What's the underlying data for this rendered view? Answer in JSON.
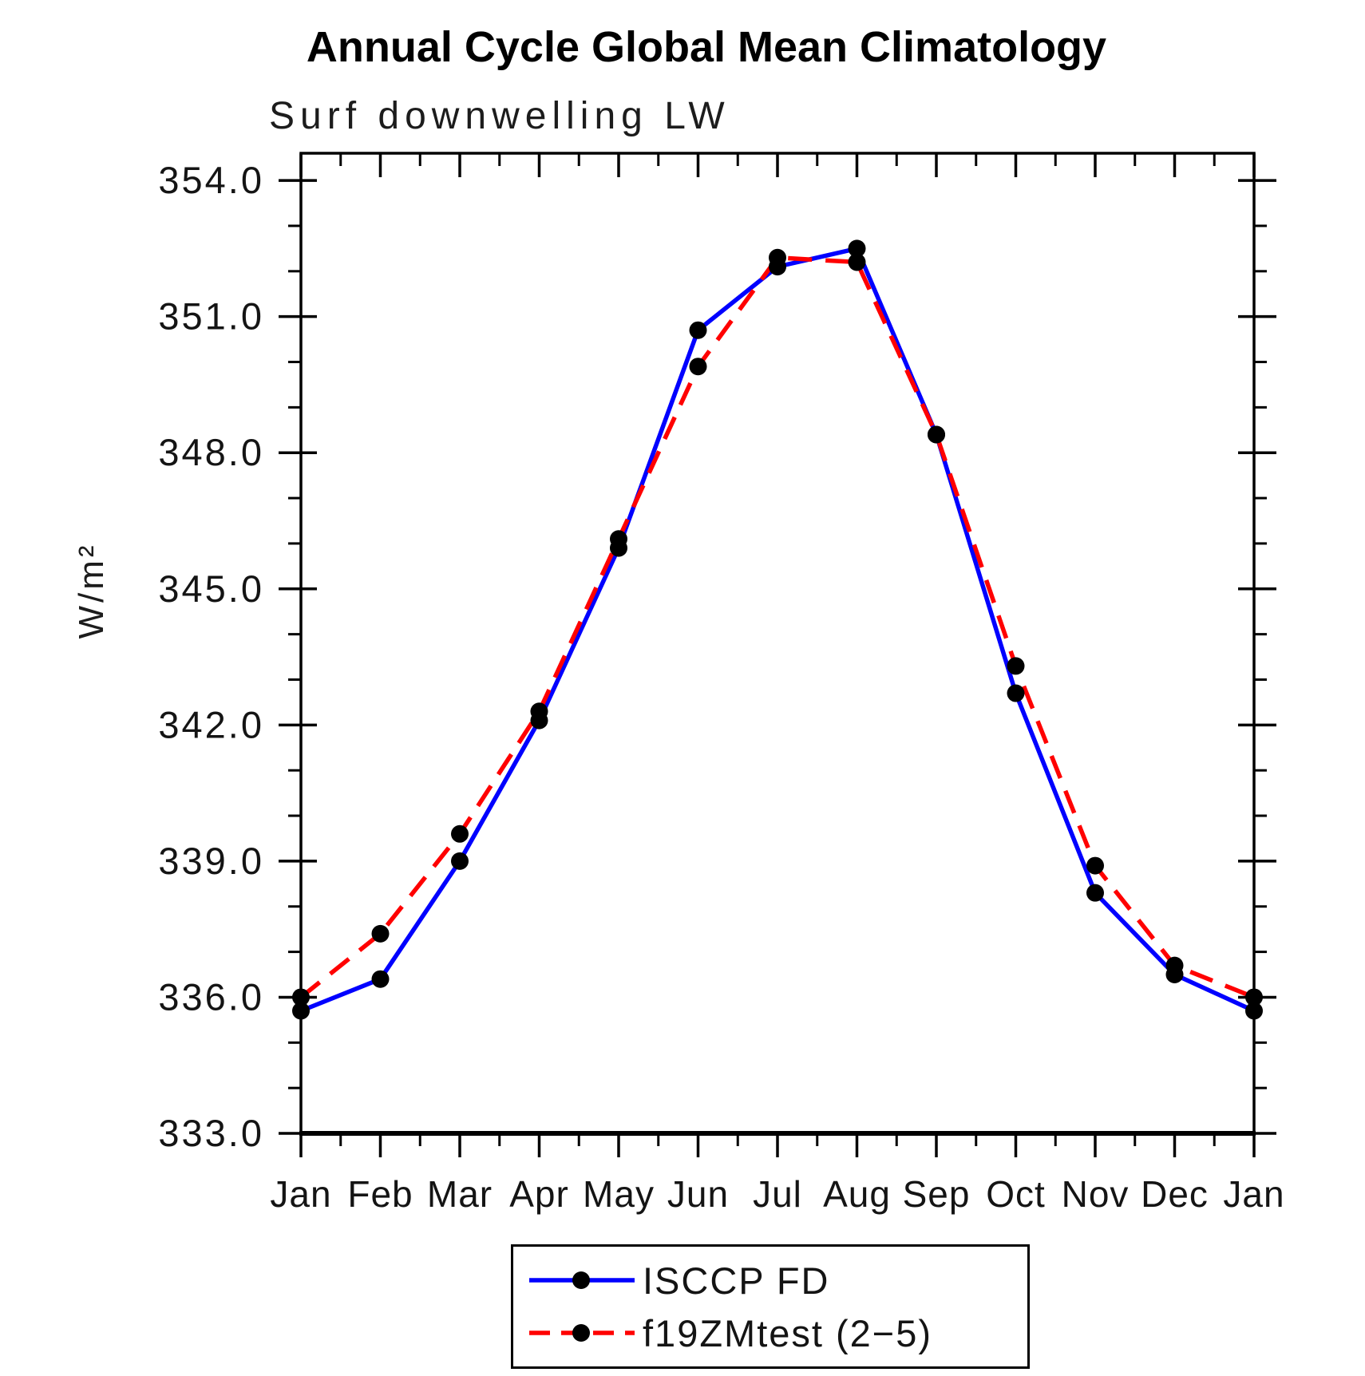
{
  "chart_data": {
    "type": "line",
    "title": "Annual Cycle Global Mean Climatology",
    "subtitle": "Surf downwelling LW",
    "ylabel": "W/m²",
    "xlabel": "",
    "x_categories": [
      "Jan",
      "Feb",
      "Mar",
      "Apr",
      "May",
      "Jun",
      "Jul",
      "Aug",
      "Sep",
      "Oct",
      "Nov",
      "Dec",
      "Jan"
    ],
    "ylim": [
      333.0,
      354.6
    ],
    "yticks_major": [
      333,
      336,
      339,
      342,
      345,
      348,
      351,
      354
    ],
    "ytick_labels": [
      "333.0",
      "336.0",
      "339.0",
      "342.0",
      "345.0",
      "348.0",
      "351.0",
      "354.0"
    ],
    "yticks_minor_step": 1.0,
    "xticks_minor_step": 0.5,
    "grid": false,
    "axis_color": "#000000",
    "marker": "filled-circle",
    "marker_color": "#000000",
    "legend_position": "bottom-center",
    "series": [
      {
        "name": "ISCCP FD",
        "color": "#0000ff",
        "line_style": "solid",
        "values": [
          335.7,
          336.4,
          339.0,
          342.1,
          345.9,
          350.7,
          352.1,
          352.5,
          348.4,
          342.7,
          338.3,
          336.5,
          335.7
        ]
      },
      {
        "name": "f19ZMtest (2−5)",
        "color": "#ff0000",
        "line_style": "dashed",
        "values": [
          336.0,
          337.4,
          339.6,
          342.3,
          346.1,
          349.9,
          352.3,
          352.2,
          348.4,
          343.3,
          338.9,
          336.7,
          336.0
        ]
      }
    ]
  }
}
